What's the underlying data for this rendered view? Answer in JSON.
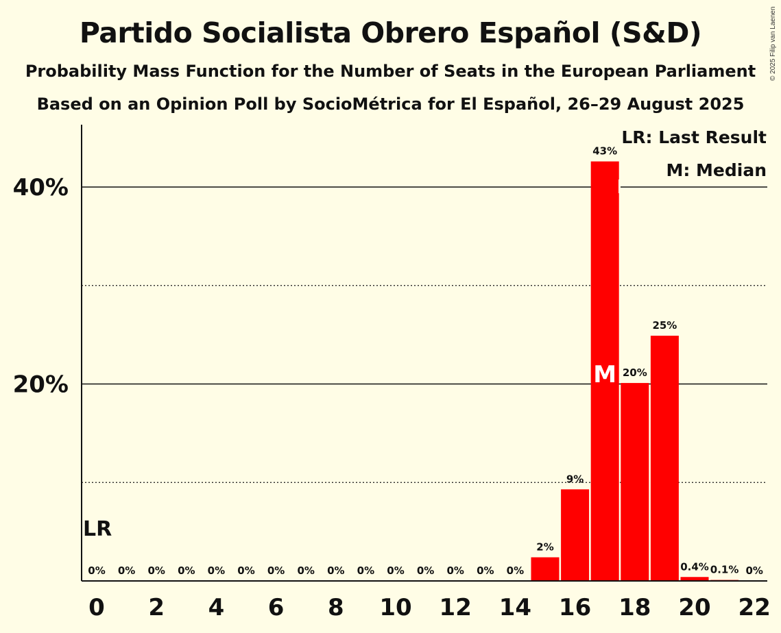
{
  "title": "Partido Socialista Obrero Español (S&D)",
  "subtitle1": "Probability Mass Function for the Number of Seats in the European Parliament",
  "subtitle2": "Based on an Opinion Poll by SocioMétrica for El Español, 26–29 August 2025",
  "copyright": "© 2025 Filip van Laenen",
  "colors": {
    "bar": "#ff0000",
    "background": "#fffde6",
    "text": "#111111"
  },
  "chart_data": {
    "type": "bar",
    "title": "Partido Socialista Obrero Español (S&D)",
    "xlabel": "",
    "ylabel": "",
    "categories": [
      0,
      1,
      2,
      3,
      4,
      5,
      6,
      7,
      8,
      9,
      10,
      11,
      12,
      13,
      14,
      15,
      16,
      17,
      18,
      19,
      20,
      21,
      22
    ],
    "values": [
      0,
      0,
      0,
      0,
      0,
      0,
      0,
      0,
      0,
      0,
      0,
      0,
      0,
      0,
      0,
      2.4,
      9.3,
      42.6,
      20.1,
      24.9,
      0.4,
      0.1,
      0
    ],
    "value_labels": [
      "0%",
      "0%",
      "0%",
      "0%",
      "0%",
      "0%",
      "0%",
      "0%",
      "0%",
      "0%",
      "0%",
      "0%",
      "0%",
      "0%",
      "0%",
      "2%",
      "9%",
      "43%",
      "20%",
      "25%",
      "0.4%",
      "0.1%",
      "0%"
    ],
    "x_tick_labels": [
      "0",
      "2",
      "4",
      "6",
      "8",
      "10",
      "12",
      "14",
      "16",
      "18",
      "20",
      "22"
    ],
    "y_tick_labels": [
      "20%",
      "40%"
    ],
    "ylim": [
      0,
      46.5
    ],
    "grid": {
      "solid": [
        20,
        40
      ],
      "dotted": [
        10,
        30
      ]
    },
    "last_result_seat": 0,
    "last_result_marker": "LR",
    "median_seat": 17,
    "median_marker": "M",
    "legend": [
      "LR: Last Result",
      "M: Median"
    ],
    "legend_position": "top-right"
  }
}
